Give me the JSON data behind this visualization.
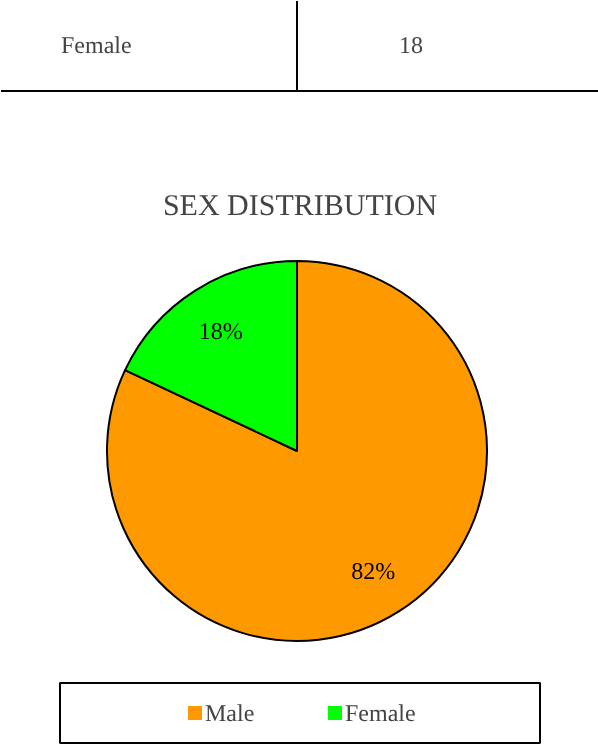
{
  "chart_data": {
    "type": "pie",
    "title": "SEX DISTRIBUTION",
    "categories": [
      "Male",
      "Female"
    ],
    "values": [
      82,
      18
    ],
    "colors": [
      "#ff9900",
      "#00ff00"
    ],
    "value_labels": [
      "82%",
      "18%"
    ],
    "legend": "bottom",
    "annotations": [
      "Female",
      "18"
    ]
  }
}
